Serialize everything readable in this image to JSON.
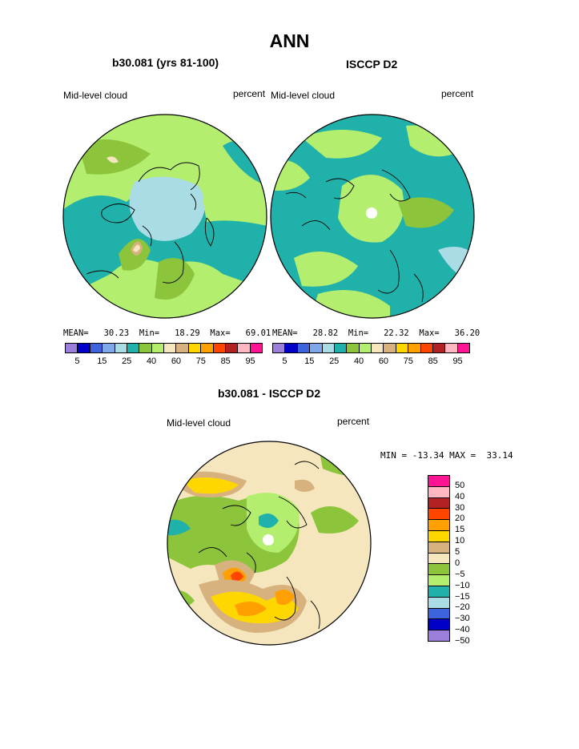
{
  "page": {
    "title": "ANN"
  },
  "panels": [
    {
      "title": "b30.081 (yrs 81-100)",
      "variable": "Mid-level cloud",
      "units": "percent",
      "stats": {
        "mean_label": "MEAN=",
        "mean": "30.23",
        "min_label": "Min=",
        "min": "18.29",
        "max_label": "Max=",
        "max": "69.01"
      }
    },
    {
      "title": "ISCCP D2",
      "variable": "Mid-level cloud",
      "units": "percent",
      "stats": {
        "mean_label": "MEAN=",
        "mean": "28.82",
        "min_label": "Min=",
        "min": "22.32",
        "max_label": "Max=",
        "max": "36.20"
      }
    }
  ],
  "abs_colorbar": {
    "colors": [
      "#9b7fdb",
      "#0000c8",
      "#3d64dc",
      "#7fa8ea",
      "#aadce6",
      "#20b2aa",
      "#8cc43c",
      "#b4ee6e",
      "#f5e6be",
      "#d8b27e",
      "#ffd700",
      "#ffa000",
      "#ff4500",
      "#b22222",
      "#ffb6c1",
      "#ff1493"
    ],
    "tick_labels": [
      "5",
      "15",
      "25",
      "40",
      "60",
      "75",
      "85",
      "95"
    ]
  },
  "diff_panel": {
    "title": "b30.081 - ISCCP D2",
    "variable": "Mid-level cloud",
    "units": "percent",
    "min_max_text": "MIN = -13.34 MAX =  33.14"
  },
  "diff_colorbar": {
    "colors_top_to_bottom": [
      "#ff1493",
      "#ffb6c1",
      "#b22222",
      "#ff4500",
      "#ffa000",
      "#ffd700",
      "#d8b27e",
      "#f5e6be",
      "#8cc43c",
      "#b4ee6e",
      "#20b2aa",
      "#aadce6",
      "#3d64dc",
      "#0000c8",
      "#9b7fdb"
    ],
    "tick_labels": [
      "50",
      "40",
      "30",
      "20",
      "15",
      "10",
      "5",
      "0",
      "−5",
      "−10",
      "−15",
      "−20",
      "−30",
      "−40",
      "−50"
    ]
  },
  "map_colors": {
    "deep_teal": "#20b2aa",
    "light_green": "#b4ee6e",
    "olive_green": "#8cc43c",
    "pale_cyan": "#aadce6",
    "wheat": "#f5e6be",
    "tan": "#d8b27e",
    "gold": "#ffd700",
    "orange": "#ffa000",
    "red_orange": "#ff4500",
    "blue": "#3d64dc"
  }
}
